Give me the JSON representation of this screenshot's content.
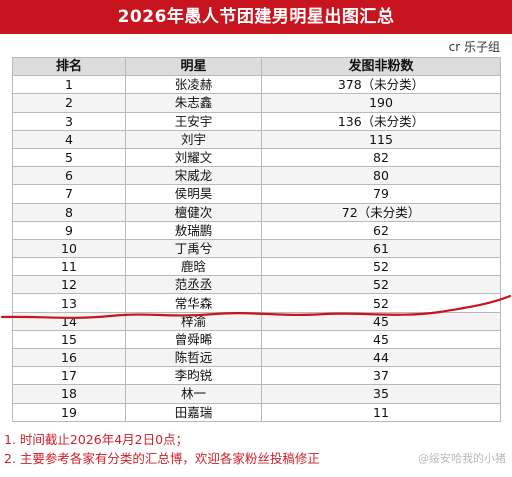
{
  "header": {
    "title": "2026年愚人节团建男明星出图汇总"
  },
  "credit": "cr 乐子组",
  "table": {
    "columns": [
      "排名",
      "明星",
      "发图非粉数"
    ],
    "rows": [
      {
        "rank": "1",
        "name": "张凌赫",
        "count": "378（未分类）"
      },
      {
        "rank": "2",
        "name": "朱志鑫",
        "count": "190"
      },
      {
        "rank": "3",
        "name": "王安宇",
        "count": "136（未分类）"
      },
      {
        "rank": "4",
        "name": "刘宇",
        "count": "115"
      },
      {
        "rank": "5",
        "name": "刘耀文",
        "count": "82"
      },
      {
        "rank": "6",
        "name": "宋威龙",
        "count": "80"
      },
      {
        "rank": "7",
        "name": "侯明昊",
        "count": "79"
      },
      {
        "rank": "8",
        "name": "檀健次",
        "count": "72（未分类）"
      },
      {
        "rank": "9",
        "name": "敖瑞鹏",
        "count": "62"
      },
      {
        "rank": "10",
        "name": "丁禹兮",
        "count": "61"
      },
      {
        "rank": "11",
        "name": "鹿晗",
        "count": "52"
      },
      {
        "rank": "12",
        "name": "范丞丞",
        "count": "52"
      },
      {
        "rank": "13",
        "name": "常华森",
        "count": "52"
      },
      {
        "rank": "14",
        "name": "梓渝",
        "count": "45"
      },
      {
        "rank": "15",
        "name": "曾舜晞",
        "count": "45"
      },
      {
        "rank": "16",
        "name": "陈哲远",
        "count": "44"
      },
      {
        "rank": "17",
        "name": "李昀锐",
        "count": "37"
      },
      {
        "rank": "18",
        "name": "林一",
        "count": "35"
      },
      {
        "rank": "19",
        "name": "田嘉瑞",
        "count": "11"
      }
    ]
  },
  "notes": [
    "1. 时间截止2026年4月2日0点；",
    "2. 主要参考各家有分类的汇总博，欢迎各家粉丝投稿修正"
  ],
  "watermark": "@绥安哈我的小猪",
  "colors": {
    "title_bg": "#c8141e",
    "header_bg": "#dcdcdc",
    "note_text": "#d0202a",
    "marker_line": "#c8141e"
  }
}
